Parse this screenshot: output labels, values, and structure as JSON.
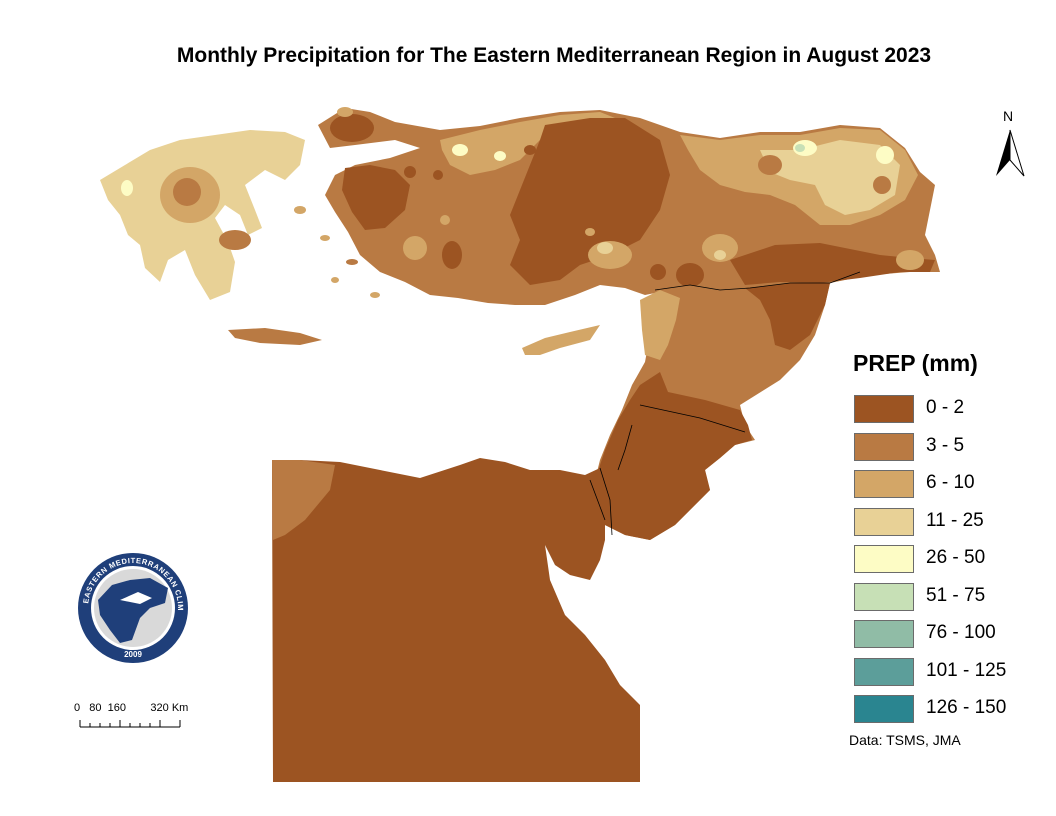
{
  "title": "Monthly Precipitation for The Eastern Mediterranean Region in August 2023",
  "legend": {
    "title": "PREP (mm)",
    "classes": [
      {
        "label": "0 - 2",
        "color": "#9c5422"
      },
      {
        "label": "3 - 5",
        "color": "#b97a43"
      },
      {
        "label": "6 - 10",
        "color": "#d3a667"
      },
      {
        "label": "11 - 25",
        "color": "#e8d196"
      },
      {
        "label": "26 - 50",
        "color": "#fdfcc5"
      },
      {
        "label": "51 - 75",
        "color": "#c7e0b6"
      },
      {
        "label": "76 - 100",
        "color": "#90bca6"
      },
      {
        "label": "101 - 125",
        "color": "#5c9e9a"
      },
      {
        "label": "126 - 150",
        "color": "#2a8590"
      }
    ]
  },
  "source": "Data: TSMS, JMA",
  "scale_bar": {
    "labels": "0   80  160        320 Km"
  },
  "north_arrow": {
    "label": "N",
    "icon": "north-arrow-icon"
  },
  "logo": {
    "text": "EASTERN MEDITERRANEAN CLIMATE CENTRE",
    "year": "2009"
  }
}
